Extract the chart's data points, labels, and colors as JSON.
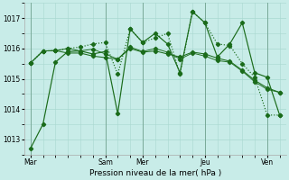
{
  "xlabel": "Pression niveau de la mer( hPa )",
  "background_color": "#c8ece8",
  "grid_color": "#a8d8d0",
  "line_color": "#1a6b1a",
  "vline_color": "#7aaa99",
  "ylim": [
    1012.5,
    1017.5
  ],
  "yticks": [
    1013,
    1014,
    1015,
    1016,
    1017
  ],
  "day_labels": [
    "Mar",
    "Sam",
    "Mer",
    "Jeu",
    "Ven"
  ],
  "day_positions": [
    0,
    6,
    9,
    14,
    19
  ],
  "xlim": [
    -0.5,
    20.5
  ],
  "n_points": 21,
  "series": [
    [
      1012.7,
      1013.5,
      1015.55,
      1015.9,
      1015.92,
      1015.82,
      1015.9,
      1013.85,
      1016.65,
      1016.2,
      1016.5,
      1016.15,
      1015.2,
      1017.22,
      1016.85,
      1015.72,
      1016.15,
      1016.85,
      1015.2,
      1015.05,
      1013.8
    ],
    [
      1015.52,
      1015.92,
      1015.93,
      1015.85,
      1015.85,
      1015.75,
      1015.7,
      1015.65,
      1016.0,
      1015.88,
      1015.92,
      1015.82,
      1015.72,
      1015.88,
      1015.82,
      1015.68,
      1015.58,
      1015.28,
      1014.95,
      1014.7,
      1014.55
    ],
    [
      1015.52,
      1015.92,
      1015.93,
      1016.0,
      1016.05,
      1016.15,
      1016.2,
      1015.15,
      1016.65,
      1016.2,
      1016.35,
      1016.5,
      1015.15,
      1017.22,
      1016.85,
      1016.15,
      1016.1,
      1015.5,
      1015.05,
      1013.8,
      1013.8
    ],
    [
      1015.52,
      1015.92,
      1015.93,
      1016.0,
      1015.92,
      1015.98,
      1015.82,
      1015.65,
      1016.05,
      1015.9,
      1016.0,
      1015.88,
      1015.65,
      1015.85,
      1015.75,
      1015.6,
      1015.55,
      1015.25,
      1014.9,
      1014.65,
      1014.55
    ]
  ],
  "series_styles": [
    {
      "linestyle": "-",
      "marker": "D",
      "markersize": 2.2,
      "linewidth": 0.85,
      "zorder": 3
    },
    {
      "linestyle": "-",
      "marker": "D",
      "markersize": 2.2,
      "linewidth": 0.75,
      "zorder": 2
    },
    {
      "linestyle": ":",
      "marker": "D",
      "markersize": 2.2,
      "linewidth": 0.85,
      "zorder": 4
    },
    {
      "linestyle": "-",
      "marker": "D",
      "markersize": 2.2,
      "linewidth": 0.65,
      "zorder": 2
    }
  ]
}
